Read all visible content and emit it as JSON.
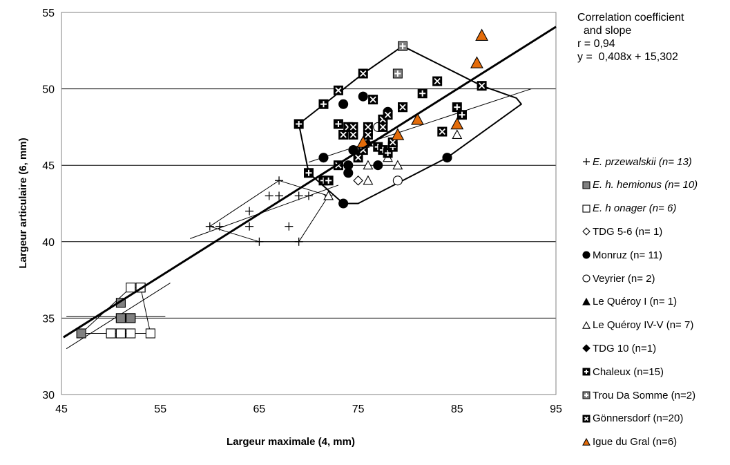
{
  "chart_data": {
    "type": "scatter",
    "xlabel": "Largeur maximale (4, mm)",
    "ylabel": "Largeur articulaire (6,  mm)",
    "xlim": [
      45,
      95
    ],
    "ylim": [
      30,
      55
    ],
    "xticks": [
      45,
      55,
      65,
      75,
      85,
      95
    ],
    "yticks": [
      30,
      35,
      40,
      45,
      50,
      55
    ],
    "grid": "horizontal",
    "legend_position": "right",
    "correlation": {
      "heading_line1": "Correlation coefficient",
      "heading_line2": "  and slope",
      "r_text": "r = 0,94",
      "equation_text": "y =  0,408x + 15,302",
      "slope": 0.408,
      "intercept": 15.302,
      "x_range": [
        45.2,
        95
      ]
    },
    "series": [
      {
        "label": "E. przewalskii (n= 13)",
        "italic": true,
        "marker": "plus",
        "color": "#000000",
        "points": [
          [
            60,
            41
          ],
          [
            61,
            41
          ],
          [
            64,
            41
          ],
          [
            64,
            42
          ],
          [
            65,
            40
          ],
          [
            66,
            43
          ],
          [
            67,
            43
          ],
          [
            67,
            44
          ],
          [
            68,
            41
          ],
          [
            69,
            40
          ],
          [
            69,
            43
          ],
          [
            70,
            43
          ],
          [
            72,
            43
          ]
        ]
      },
      {
        "label": "E. h. hemionus (n= 10)",
        "italic": true,
        "marker": "square-filled",
        "color": "#808080",
        "points": [
          [
            47,
            34
          ],
          [
            50,
            34
          ],
          [
            51,
            34
          ],
          [
            51,
            35
          ],
          [
            51,
            36
          ],
          [
            52,
            35
          ],
          [
            53,
            37
          ],
          [
            53,
            37
          ],
          [
            51,
            35
          ],
          [
            52,
            35
          ]
        ]
      },
      {
        "label": "E. h onager (n= 6)",
        "italic": true,
        "marker": "square-open",
        "color": "#ffffff",
        "points": [
          [
            50,
            34
          ],
          [
            52,
            34
          ],
          [
            52,
            37
          ],
          [
            54,
            34
          ],
          [
            53,
            37
          ],
          [
            51,
            34
          ]
        ]
      },
      {
        "label": "TDG 5-6 (n= 1)",
        "italic": false,
        "marker": "diamond-open",
        "color": "#ffffff",
        "points": [
          [
            75,
            44
          ]
        ]
      },
      {
        "label": "Monruz (n= 11)",
        "italic": false,
        "marker": "circle-filled",
        "color": "#000000",
        "points": [
          [
            71.5,
            45.5
          ],
          [
            73.5,
            42.5
          ],
          [
            73.5,
            49
          ],
          [
            74,
            44.5
          ],
          [
            74,
            45
          ],
          [
            74.5,
            46
          ],
          [
            75.5,
            49.5
          ],
          [
            77,
            45
          ],
          [
            78,
            48.5
          ],
          [
            84,
            45.5
          ],
          [
            76,
            47
          ]
        ]
      },
      {
        "label": "Veyrier (n= 2)",
        "italic": false,
        "marker": "circle-open",
        "color": "#ffffff",
        "points": [
          [
            77,
            47.5
          ],
          [
            79,
            44
          ]
        ]
      },
      {
        "label": "Le Quéroy I (n= 1)",
        "italic": false,
        "marker": "triangle-filled",
        "color": "#000000",
        "points": [
          [
            76,
            46.5
          ]
        ]
      },
      {
        "label": "Le Quéroy IV-V (n= 7)",
        "italic": false,
        "marker": "triangle-open",
        "color": "#ffffff",
        "points": [
          [
            72,
            43
          ],
          [
            76,
            44
          ],
          [
            76,
            45
          ],
          [
            79,
            45
          ],
          [
            79,
            47
          ],
          [
            85,
            47
          ],
          [
            78,
            45.5
          ]
        ]
      },
      {
        "label": "TDG 10 (n=1)",
        "italic": false,
        "marker": "diamond-filled",
        "color": "#000000",
        "points": [
          [
            76,
            47.5
          ]
        ]
      },
      {
        "label": "Chaleux (n=15)",
        "italic": false,
        "marker": "plus-box",
        "color": "#000000",
        "points": [
          [
            69,
            47.7
          ],
          [
            70,
            44.5
          ],
          [
            71.5,
            44
          ],
          [
            71.5,
            49
          ],
          [
            72,
            44
          ],
          [
            73,
            47.7
          ],
          [
            74,
            47.5
          ],
          [
            77,
            46.2
          ],
          [
            77.5,
            46
          ],
          [
            78,
            45.8
          ],
          [
            78.5,
            46.2
          ],
          [
            79.5,
            48.8
          ],
          [
            81.5,
            49.7
          ],
          [
            85,
            48.8
          ],
          [
            85.5,
            48.3
          ]
        ]
      },
      {
        "label": "Trou Da Somme (n=2)",
        "italic": false,
        "marker": "plus-box",
        "color": "#808080",
        "points": [
          [
            79,
            51
          ],
          [
            79.5,
            52.8
          ]
        ]
      },
      {
        "label": "Gönnersdorf (n=20)",
        "italic": false,
        "marker": "x-box",
        "color": "#000000",
        "points": [
          [
            73,
            45
          ],
          [
            73,
            49.9
          ],
          [
            73.5,
            47
          ],
          [
            74,
            47.5
          ],
          [
            74.5,
            47
          ],
          [
            74.5,
            47.5
          ],
          [
            75,
            45.5
          ],
          [
            75.5,
            46
          ],
          [
            75.5,
            51
          ],
          [
            76,
            47
          ],
          [
            76,
            47.5
          ],
          [
            76.5,
            49.3
          ],
          [
            77.5,
            47.5
          ],
          [
            77.5,
            48
          ],
          [
            78,
            48.3
          ],
          [
            78.5,
            46.5
          ],
          [
            79.5,
            48.8
          ],
          [
            83,
            50.5
          ],
          [
            83.5,
            47.2
          ],
          [
            87.5,
            50.2
          ]
        ]
      },
      {
        "label": "Igue du Gral (n=6)",
        "italic": false,
        "marker": "triangle-filled",
        "color": "#E46C0A",
        "points": [
          [
            75.5,
            46.5
          ],
          [
            79,
            47
          ],
          [
            81,
            48
          ],
          [
            85,
            47.7
          ],
          [
            87,
            51.7
          ],
          [
            87.5,
            53.5
          ]
        ]
      }
    ],
    "hulls": [
      {
        "name": "E. przewalskii",
        "width": 1,
        "points": [
          [
            60,
            41
          ],
          [
            67,
            44
          ],
          [
            72,
            43
          ],
          [
            69,
            40
          ],
          [
            65,
            40
          ]
        ]
      },
      {
        "name": "E. hemionus",
        "width": 1,
        "points": [
          [
            47,
            34
          ],
          [
            52,
            37
          ],
          [
            53,
            37
          ],
          [
            54,
            34
          ],
          [
            51,
            34
          ]
        ]
      },
      {
        "name": "Magdalenian",
        "width": 2,
        "points": [
          [
            69,
            47.7
          ],
          [
            75.5,
            51
          ],
          [
            79.5,
            52.8
          ],
          [
            87.5,
            50.2
          ],
          [
            91,
            49.4
          ],
          [
            91.5,
            49
          ],
          [
            84,
            45.5
          ],
          [
            75,
            42.5
          ],
          [
            73.5,
            42.5
          ],
          [
            70,
            44.5
          ]
        ]
      }
    ],
    "regression_segments": [
      {
        "group": "E. przewalskii",
        "from": [
          58,
          40.2
        ],
        "to": [
          73,
          43.7
        ]
      },
      {
        "group": "E. hemionus",
        "from": [
          45.5,
          35.1
        ],
        "to": [
          55.5,
          35.1
        ]
      },
      {
        "group": "E. hemionus",
        "from": [
          45.5,
          33.0
        ],
        "to": [
          56,
          37.3
        ]
      },
      {
        "group": "Magdalenian",
        "from": [
          70,
          45.2
        ],
        "to": [
          92.5,
          50
        ]
      }
    ]
  }
}
